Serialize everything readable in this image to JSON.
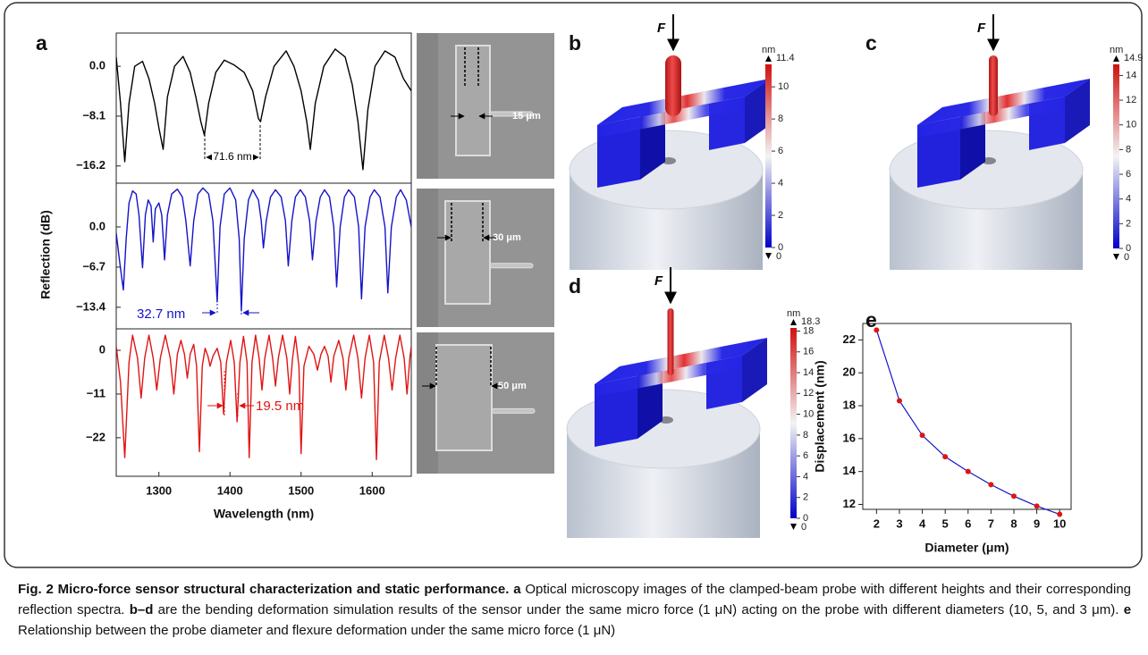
{
  "chart_data": [
    {
      "type": "line",
      "x": [
        1240,
        1246,
        1252,
        1258,
        1266,
        1277,
        1286,
        1294,
        1300,
        1306,
        1312,
        1322,
        1334,
        1344,
        1352,
        1359,
        1364,
        1370,
        1380,
        1392,
        1406,
        1420,
        1432,
        1440,
        1443,
        1450,
        1462,
        1479,
        1490,
        1500,
        1508,
        1513,
        1520,
        1532,
        1548,
        1562,
        1572,
        1580,
        1587,
        1594,
        1604,
        1618,
        1632,
        1644,
        1655
      ],
      "values": [
        1.5,
        -6,
        -15.5,
        -6,
        0,
        0.8,
        -2,
        -6,
        -10,
        -13.5,
        -5,
        0,
        1.6,
        -1,
        -5,
        -9,
        -11.2,
        -6,
        -1,
        1.0,
        0.2,
        -1,
        -4,
        -8.5,
        -9.0,
        -5,
        0,
        2.5,
        0,
        -4,
        -9,
        -13.5,
        -6,
        0,
        2.8,
        1.5,
        -3,
        -9,
        -16.8,
        -7,
        0,
        2.5,
        1.5,
        -2,
        -4
      ],
      "color": "#000000",
      "xlim": [
        1240,
        1655
      ],
      "ylim": [
        -19.0,
        5.4
      ],
      "yticks": [
        {
          "value": 0,
          "label": "0.0"
        },
        {
          "value": -8.1,
          "label": "−8.1"
        },
        {
          "value": -16.2,
          "label": "−16.2"
        }
      ],
      "annotations": [
        "71.6 nm"
      ]
    },
    {
      "type": "line",
      "x": [
        1240,
        1245,
        1250,
        1254,
        1258,
        1263,
        1268,
        1272,
        1277,
        1281,
        1285,
        1289,
        1292,
        1295,
        1300,
        1304,
        1308,
        1312,
        1318,
        1326,
        1333,
        1338,
        1344,
        1349,
        1355,
        1362,
        1370,
        1376,
        1382,
        1386,
        1392,
        1400,
        1408,
        1413,
        1416,
        1420,
        1426,
        1432,
        1440,
        1444,
        1447,
        1451,
        1457,
        1464,
        1472,
        1478,
        1482,
        1487,
        1492,
        1499,
        1506,
        1512,
        1516,
        1521,
        1527,
        1533,
        1540,
        1546,
        1550,
        1555,
        1561,
        1567,
        1575,
        1581,
        1585,
        1590,
        1597,
        1603,
        1611,
        1618,
        1622,
        1627,
        1634,
        1640,
        1648,
        1655
      ],
      "values": [
        -1,
        -6,
        -10.5,
        -2,
        4,
        6,
        5.5,
        2,
        -6.8,
        2,
        4.5,
        3.5,
        -2.5,
        3,
        4,
        2,
        -5.5,
        2,
        5.5,
        6.3,
        5,
        1,
        -6.5,
        1,
        5.5,
        6.5,
        5.5,
        1,
        -12.5,
        0,
        5.5,
        6.5,
        4.5,
        -2,
        -14,
        -2,
        4.5,
        6.2,
        4.5,
        1,
        -3.5,
        1,
        5,
        6.2,
        5,
        1,
        -6.5,
        1,
        5,
        6.2,
        5,
        1,
        -5.5,
        1,
        5,
        6.2,
        5,
        0,
        -10,
        0,
        5,
        6.2,
        5,
        0,
        -12,
        0,
        5,
        6.2,
        5,
        0,
        -11,
        0,
        5,
        6.2,
        4.5,
        0
      ],
      "color": "#1414c8",
      "xlim": [
        1240,
        1655
      ],
      "ylim": [
        -17.0,
        7.3
      ],
      "yticks": [
        {
          "value": 0,
          "label": "0.0"
        },
        {
          "value": -6.7,
          "label": "−6.7"
        },
        {
          "value": -13.4,
          "label": "−13.4"
        }
      ],
      "ylabel": "Reflection (dB)",
      "annotations": [
        "32.7 nm"
      ]
    },
    {
      "type": "line",
      "x": [
        1240,
        1246,
        1252,
        1258,
        1263,
        1270,
        1275,
        1280,
        1286,
        1292,
        1297,
        1302,
        1309,
        1316,
        1321,
        1326,
        1331,
        1336,
        1340,
        1344,
        1349,
        1353,
        1357,
        1361,
        1365,
        1369,
        1372,
        1376,
        1382,
        1387,
        1391,
        1395,
        1401,
        1406,
        1410,
        1414,
        1419,
        1424,
        1427,
        1431,
        1436,
        1441,
        1445,
        1449,
        1455,
        1460,
        1464,
        1468,
        1474,
        1480,
        1484,
        1488,
        1492,
        1497,
        1500,
        1504,
        1511,
        1518,
        1523,
        1528,
        1533,
        1538,
        1542,
        1546,
        1553,
        1559,
        1563,
        1567,
        1574,
        1580,
        1585,
        1590,
        1596,
        1602,
        1606,
        1610,
        1617,
        1623,
        1628,
        1633,
        1639,
        1645,
        1649,
        1653,
        1655
      ],
      "values": [
        1.0,
        -8,
        -27,
        -3,
        3.8,
        -2,
        -12,
        -2,
        3.8,
        -2,
        -10,
        -2,
        3.8,
        -2,
        -11,
        -1,
        2.5,
        -1,
        -7,
        -1,
        1.5,
        -4,
        -25.5,
        -4,
        0.5,
        -1.5,
        -4,
        -1.5,
        0.5,
        -3,
        -16,
        -3,
        2.5,
        -3,
        -18,
        -3,
        3.5,
        -3,
        -27,
        -3,
        3.8,
        -2,
        -10,
        -2,
        3.8,
        -2,
        -9,
        -2,
        3.8,
        -2,
        -11,
        -2,
        3.5,
        -4,
        -26,
        -4,
        1.0,
        -1,
        -5,
        -1,
        1.0,
        -1.5,
        -8,
        -1.5,
        2.5,
        -2,
        -10,
        -2,
        3.8,
        -2,
        -12,
        -2,
        3.8,
        -3,
        -27.5,
        -3,
        3.8,
        -2,
        -10,
        -2,
        3.8,
        -2,
        -11,
        -2,
        1.0
      ],
      "color": "#e01414",
      "xlim": [
        1240,
        1655
      ],
      "ylim": [
        -31.7,
        5.4
      ],
      "yticks": [
        0,
        {
          "value": -11,
          "label": "−11"
        },
        {
          "value": -22,
          "label": "−22"
        }
      ],
      "xticks": [
        1300,
        1400,
        1500,
        1600
      ],
      "xlabel": "Wavelength (nm)",
      "annotations": [
        "19.5 nm"
      ]
    },
    {
      "type": "line",
      "x": [
        2,
        3,
        4,
        5,
        6,
        7,
        8,
        9,
        10
      ],
      "values": [
        22.6,
        18.3,
        16.2,
        14.9,
        14.0,
        13.2,
        12.5,
        11.9,
        11.4
      ],
      "color": "#1414c8",
      "marker_color": "#e01414",
      "xlim": [
        1.4,
        10.5
      ],
      "ylim": [
        11.7,
        23
      ],
      "xticks": [
        2,
        3,
        4,
        5,
        6,
        7,
        8,
        9,
        10
      ],
      "yticks": [
        12,
        14,
        16,
        18,
        20,
        22
      ],
      "xlabel": "Diameter (μm)",
      "ylabel": "Displacement (nm)"
    }
  ],
  "panel_labels": [
    "a",
    "b",
    "c",
    "d",
    "e"
  ],
  "micrographs": [
    {
      "scale": "15 μm"
    },
    {
      "scale": "30 μm"
    },
    {
      "scale": "50 μm"
    }
  ],
  "simulations": [
    {
      "force": "F",
      "colorbar": {
        "unit": "nm",
        "max": 11.4,
        "min": 0,
        "ticks": [
          0,
          2,
          4,
          6,
          8,
          10
        ]
      }
    },
    {
      "force": "F",
      "colorbar": {
        "unit": "nm",
        "max": 14.9,
        "min": 0,
        "ticks": [
          0,
          2,
          4,
          6,
          8,
          10,
          12,
          14
        ]
      }
    },
    {
      "force": "F",
      "colorbar": {
        "unit": "nm",
        "max": 18.3,
        "min": 0,
        "ticks": [
          0,
          2,
          4,
          6,
          8,
          10,
          12,
          14,
          16,
          18
        ]
      }
    }
  ],
  "caption": {
    "title": "Fig. 2 Micro-force sensor structural characterization and static performance.",
    "parts": [
      {
        "label": "a",
        "text": "Optical microscopy images of the clamped-beam probe with different heights and their corresponding reflection spectra."
      },
      {
        "label": "b–d",
        "text": "are the bending deformation simulation results of the sensor under the same micro force (1 μN) acting on the probe with different diameters (10, 5, and 3 μm)."
      },
      {
        "label": "e",
        "text": "Relationship between the probe diameter and flexure deformation under the same micro force (1 μN)"
      }
    ]
  }
}
